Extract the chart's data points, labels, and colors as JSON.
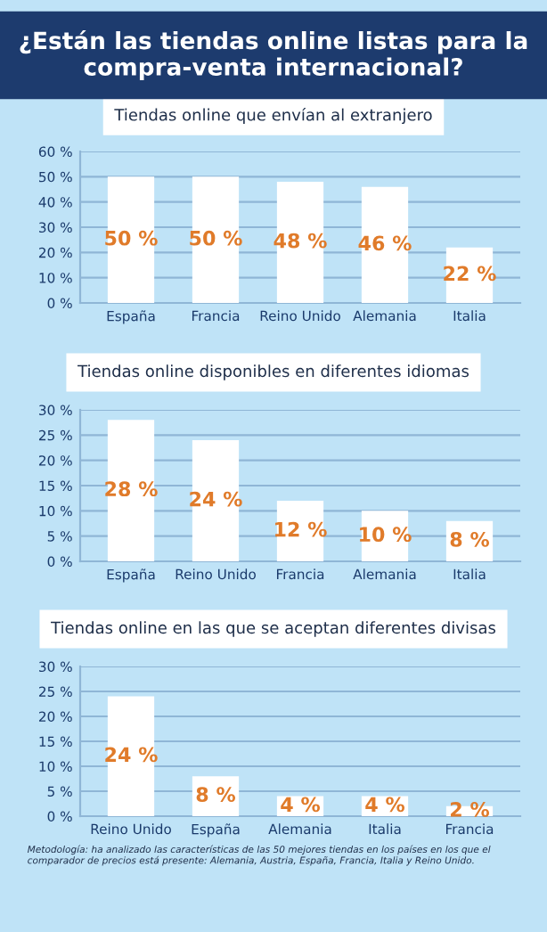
{
  "chart_data": [
    {
      "type": "bar",
      "title": "¿Están las tiendas online listas para la compra-venta internacional?",
      "subtitle": "Tiendas online que envían al extranjero",
      "categories": [
        "España",
        "Francia",
        "Reino Unido",
        "Alemania",
        "Italia"
      ],
      "values": [
        50,
        50,
        48,
        46,
        22
      ],
      "value_labels": [
        "50 %",
        "50 %",
        "48 %",
        "46 %",
        "22 %"
      ],
      "color": "#ffffff",
      "ylim": [
        0,
        60
      ],
      "yticks": [
        {
          "value": 0,
          "label": "0 %"
        },
        {
          "value": 10,
          "label": "10 %"
        },
        {
          "value": 20,
          "label": "20 %"
        },
        {
          "value": 30,
          "label": "30 %"
        },
        {
          "value": 40,
          "label": "40 %"
        },
        {
          "value": 50,
          "label": "50 %"
        },
        {
          "value": 60,
          "label": "60 %"
        }
      ],
      "grid": "y"
    },
    {
      "type": "bar",
      "subtitle": "Tiendas online disponibles en diferentes idiomas",
      "categories": [
        "España",
        "Reino Unido",
        "Francia",
        "Alemania",
        "Italia"
      ],
      "values": [
        28,
        24,
        12,
        10,
        8
      ],
      "value_labels": [
        "28 %",
        "24 %",
        "12 %",
        "10 %",
        "8 %"
      ],
      "color": "#ffffff",
      "ylim": [
        0,
        30
      ],
      "yticks": [
        {
          "value": 0,
          "label": "0 %"
        },
        {
          "value": 5,
          "label": "5 %"
        },
        {
          "value": 10,
          "label": "10 %"
        },
        {
          "value": 15,
          "label": "15 %"
        },
        {
          "value": 20,
          "label": "20 %"
        },
        {
          "value": 25,
          "label": "25 %"
        },
        {
          "value": 30,
          "label": "30 %"
        }
      ],
      "grid": "y"
    },
    {
      "type": "bar",
      "subtitle": "Tiendas online en las que se aceptan diferentes divisas",
      "categories": [
        "Reino Unido",
        "España",
        "Alemania",
        "Italia",
        "Francia"
      ],
      "values": [
        24,
        8,
        4,
        4,
        2
      ],
      "value_labels": [
        "24 %",
        "8 %",
        "4 %",
        "4 %",
        "2 %"
      ],
      "color": "#ffffff",
      "ylim": [
        0,
        30
      ],
      "yticks": [
        {
          "value": 0,
          "label": "0 %"
        },
        {
          "value": 5,
          "label": "5 %"
        },
        {
          "value": 10,
          "label": "10 %"
        },
        {
          "value": 15,
          "label": "15 %"
        },
        {
          "value": 20,
          "label": "20 %"
        },
        {
          "value": 25,
          "label": "25 %"
        },
        {
          "value": 30,
          "label": "30 %"
        }
      ],
      "grid": "y",
      "annotations": [
        "Metodología: ha analizado las características de las 50 mejores tiendas en los países en los que el comparador de precios está presente: Alemania, Austria, España, Francia, Italia y Reino Unido."
      ]
    }
  ]
}
